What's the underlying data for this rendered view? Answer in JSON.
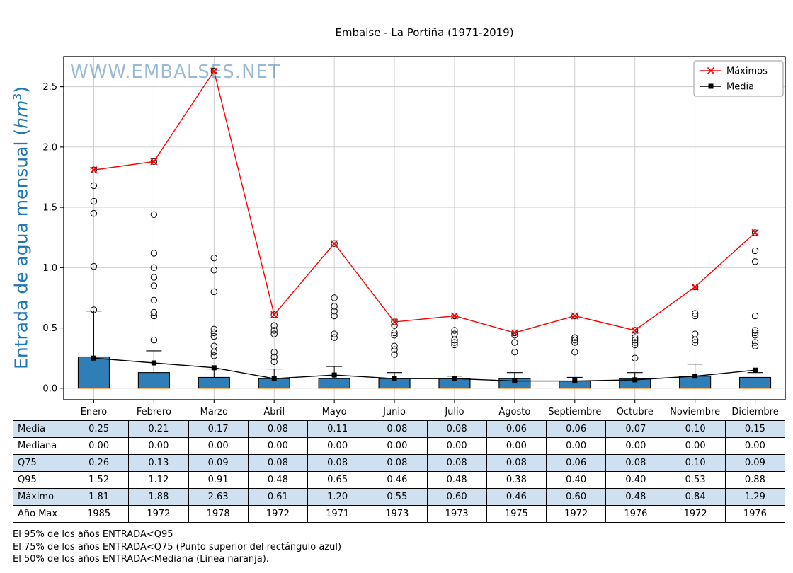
{
  "title": "Embalse - La Portiña (1971-2019)",
  "watermark": "WWW.EMBALSES.NET",
  "ylabel": {
    "prefix": "Entrada de agua mensual (",
    "unit": "hm",
    "exponent": "3",
    "suffix": ")"
  },
  "legend": [
    {
      "label": "Máximos",
      "color": "#ff0000",
      "marker": "x"
    },
    {
      "label": "Media",
      "color": "#000000",
      "marker": "square"
    }
  ],
  "chart_data": {
    "type": "boxplot-with-lines",
    "title": "Embalse - La Portiña (1971-2019)",
    "ylabel": "Entrada de agua mensual (hm³)",
    "categories": [
      "Enero",
      "Febrero",
      "Marzo",
      "Abril",
      "Mayo",
      "Junio",
      "Julio",
      "Agosto",
      "Septiembre",
      "Octubre",
      "Noviembre",
      "Diciembre"
    ],
    "yticks": [
      0.0,
      0.5,
      1.0,
      1.5,
      2.0,
      2.5
    ],
    "ylim": [
      -0.095,
      2.75
    ],
    "grid": true,
    "legend_position": "upper right",
    "series": [
      {
        "name": "Máximos",
        "type": "line",
        "marker": "x",
        "color": "#ff0000",
        "values": [
          1.81,
          1.88,
          2.63,
          0.61,
          1.2,
          0.55,
          0.6,
          0.46,
          0.6,
          0.48,
          0.84,
          1.29
        ]
      },
      {
        "name": "Media",
        "type": "line",
        "marker": "square",
        "color": "#000000",
        "values": [
          0.25,
          0.21,
          0.17,
          0.08,
          0.11,
          0.08,
          0.08,
          0.06,
          0.06,
          0.07,
          0.1,
          0.15
        ]
      }
    ],
    "boxplot": {
      "fill_color": "#2f7eb8",
      "median_color": "#ff7f0e",
      "q1": [
        0,
        0,
        0,
        0,
        0,
        0,
        0,
        0,
        0,
        0,
        0,
        0
      ],
      "median": [
        0,
        0,
        0,
        0,
        0,
        0,
        0,
        0,
        0,
        0,
        0,
        0
      ],
      "q3": [
        0.26,
        0.13,
        0.09,
        0.08,
        0.08,
        0.08,
        0.08,
        0.08,
        0.06,
        0.08,
        0.1,
        0.09
      ],
      "whisker_low": [
        0,
        0,
        0,
        0,
        0,
        0,
        0,
        0,
        0,
        0,
        0,
        0
      ],
      "whisker_high": [
        0.64,
        0.31,
        0.16,
        0.16,
        0.18,
        0.13,
        0.1,
        0.13,
        0.09,
        0.13,
        0.2,
        0.13
      ],
      "outliers": [
        [
          1.81,
          1.68,
          1.55,
          1.45,
          1.01,
          0.65
        ],
        [
          1.88,
          1.44,
          1.12,
          1.0,
          0.92,
          0.85,
          0.73,
          0.63,
          0.6,
          0.4
        ],
        [
          2.63,
          1.08,
          0.98,
          0.8,
          0.49,
          0.46,
          0.43,
          0.35,
          0.3,
          0.27
        ],
        [
          0.61,
          0.52,
          0.48,
          0.45,
          0.3,
          0.26,
          0.22
        ],
        [
          1.2,
          0.75,
          0.68,
          0.64,
          0.6,
          0.45,
          0.42
        ],
        [
          0.55,
          0.52,
          0.46,
          0.44,
          0.35,
          0.32,
          0.28
        ],
        [
          0.6,
          0.48,
          0.45,
          0.4,
          0.38,
          0.36
        ],
        [
          0.46,
          0.44,
          0.38,
          0.3
        ],
        [
          0.6,
          0.42,
          0.4,
          0.38,
          0.3
        ],
        [
          0.48,
          0.42,
          0.4,
          0.38,
          0.36,
          0.25
        ],
        [
          0.84,
          0.62,
          0.6,
          0.45,
          0.4,
          0.38
        ],
        [
          1.29,
          1.14,
          1.05,
          0.6,
          0.48,
          0.46,
          0.44,
          0.38,
          0.35
        ]
      ]
    }
  },
  "table": {
    "row_shade_color": "#cfe0f0",
    "rows": [
      {
        "label": "Media",
        "shaded": true,
        "values": [
          "0.25",
          "0.21",
          "0.17",
          "0.08",
          "0.11",
          "0.08",
          "0.08",
          "0.06",
          "0.06",
          "0.07",
          "0.10",
          "0.15"
        ]
      },
      {
        "label": "Mediana",
        "shaded": false,
        "values": [
          "0.00",
          "0.00",
          "0.00",
          "0.00",
          "0.00",
          "0.00",
          "0.00",
          "0.00",
          "0.00",
          "0.00",
          "0.00",
          "0.00"
        ]
      },
      {
        "label": "Q75",
        "shaded": true,
        "values": [
          "0.26",
          "0.13",
          "0.09",
          "0.08",
          "0.08",
          "0.08",
          "0.08",
          "0.08",
          "0.06",
          "0.08",
          "0.10",
          "0.09"
        ]
      },
      {
        "label": "Q95",
        "shaded": false,
        "values": [
          "1.52",
          "1.12",
          "0.91",
          "0.48",
          "0.65",
          "0.46",
          "0.48",
          "0.38",
          "0.40",
          "0.40",
          "0.53",
          "0.88"
        ]
      },
      {
        "label": "Máximo",
        "shaded": true,
        "values": [
          "1.81",
          "1.88",
          "2.63",
          "0.61",
          "1.20",
          "0.55",
          "0.60",
          "0.46",
          "0.60",
          "0.48",
          "0.84",
          "1.29"
        ]
      },
      {
        "label": "Año Max",
        "shaded": false,
        "values": [
          "1985",
          "1972",
          "1978",
          "1972",
          "1971",
          "1973",
          "1973",
          "1975",
          "1972",
          "1976",
          "1972",
          "1976"
        ]
      }
    ]
  },
  "footnotes": [
    "El 95% de los años ENTRADA<Q95",
    "El 75% de los años ENTRADA<Q75 (Punto superior del rectángulo azul)",
    "El 50% de los años ENTRADA<Mediana (Línea naranja)."
  ]
}
